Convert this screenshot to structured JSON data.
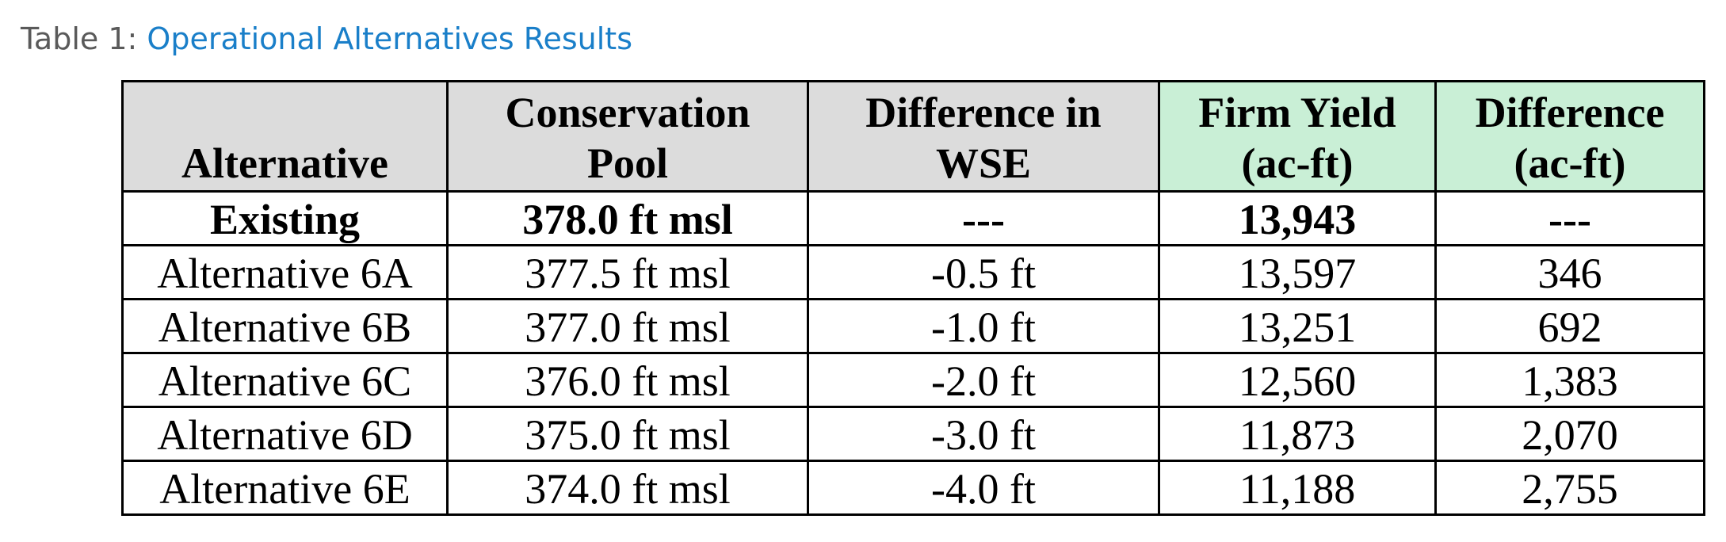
{
  "caption": {
    "label": "Table 1: ",
    "title": "Operational Alternatives Results"
  },
  "table": {
    "headers": [
      {
        "line1": "",
        "line2": "Alternative"
      },
      {
        "line1": "Conservation",
        "line2": "Pool"
      },
      {
        "line1": "Difference in",
        "line2": "WSE"
      },
      {
        "line1": "Firm Yield",
        "line2": "(ac-ft)"
      },
      {
        "line1": "Difference",
        "line2": "(ac-ft)"
      }
    ],
    "rows": [
      [
        "Existing",
        "378.0 ft msl",
        "---",
        "13,943",
        "---"
      ],
      [
        "Alternative 6A",
        "377.5 ft msl",
        "-0.5 ft",
        "13,597",
        "346"
      ],
      [
        "Alternative 6B",
        "377.0 ft msl",
        "-1.0 ft",
        "13,251",
        "692"
      ],
      [
        "Alternative 6C",
        "376.0 ft msl",
        "-2.0 ft",
        "12,560",
        "1,383"
      ],
      [
        "Alternative 6D",
        "375.0 ft msl",
        "-3.0 ft",
        "11,873",
        "2,070"
      ],
      [
        "Alternative 6E",
        "374.0 ft msl",
        "-4.0 ft",
        "11,188",
        "2,755"
      ]
    ],
    "colors": {
      "header_gray": "#dcdcdc",
      "header_green": "#c9efd6",
      "caption_blue": "#1a7fc9",
      "caption_gray": "#5a5a5a"
    }
  }
}
